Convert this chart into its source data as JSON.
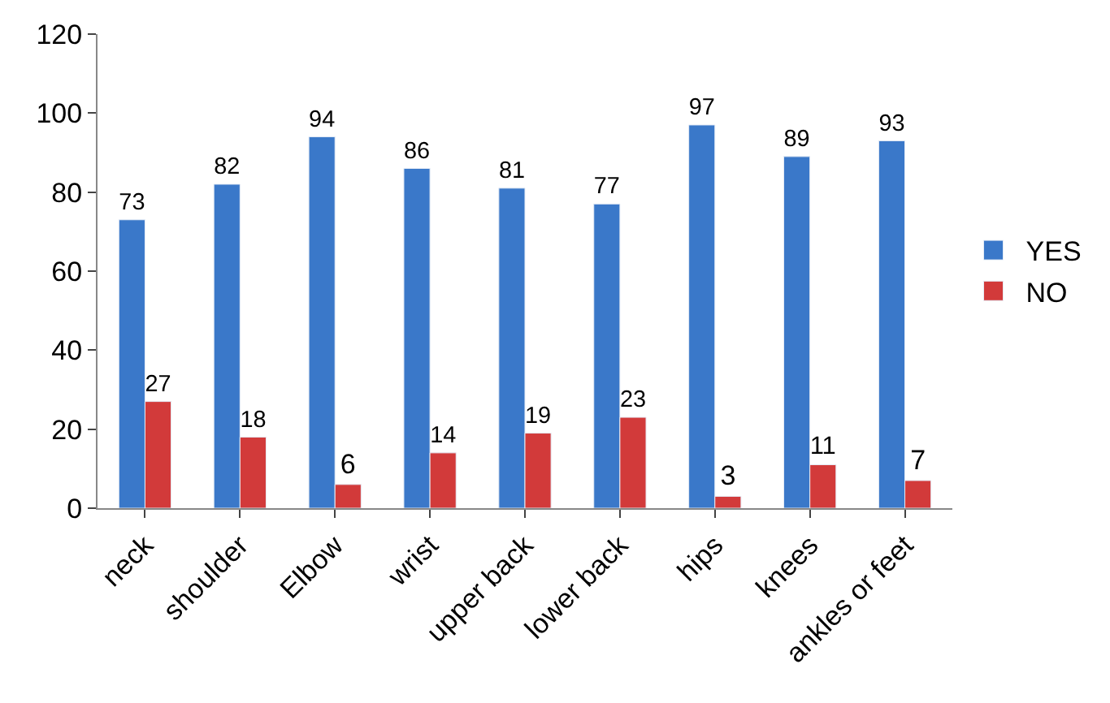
{
  "chart_data": {
    "type": "bar",
    "categories": [
      "neck",
      "shoulder",
      "Elbow",
      "wrist",
      "upper back",
      "lower back",
      "hips",
      "knees",
      "ankles or feet"
    ],
    "series": [
      {
        "name": "YES",
        "color": "#3a78c9",
        "values": [
          73,
          82,
          94,
          86,
          81,
          77,
          97,
          89,
          93
        ]
      },
      {
        "name": "NO",
        "color": "#d23a3a",
        "values": [
          27,
          18,
          6,
          14,
          19,
          23,
          3,
          11,
          7
        ]
      }
    ],
    "ylim": [
      0,
      120
    ],
    "yticks": [
      0,
      20,
      40,
      60,
      80,
      100,
      120
    ],
    "legend": "right",
    "data_labels": true
  }
}
